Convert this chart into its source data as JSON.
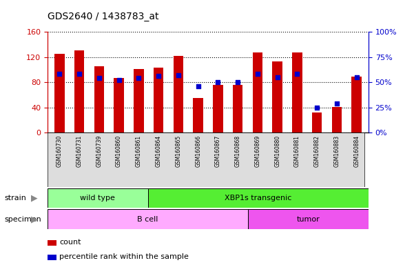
{
  "title": "GDS2640 / 1438783_at",
  "samples": [
    "GSM160730",
    "GSM160731",
    "GSM160739",
    "GSM160860",
    "GSM160861",
    "GSM160864",
    "GSM160865",
    "GSM160866",
    "GSM160867",
    "GSM160868",
    "GSM160869",
    "GSM160880",
    "GSM160881",
    "GSM160882",
    "GSM160883",
    "GSM160884"
  ],
  "counts": [
    125,
    130,
    105,
    87,
    101,
    103,
    122,
    55,
    76,
    76,
    127,
    113,
    127,
    32,
    41,
    89
  ],
  "percentiles": [
    58,
    58,
    54,
    52,
    54,
    56,
    57,
    46,
    50,
    50,
    58,
    55,
    58,
    25,
    29,
    55
  ],
  "bar_color": "#cc0000",
  "dot_color": "#0000cc",
  "ylim_left": [
    0,
    160
  ],
  "ylim_right": [
    0,
    100
  ],
  "yticks_left": [
    0,
    40,
    80,
    120,
    160
  ],
  "yticks_right": [
    0,
    25,
    50,
    75,
    100
  ],
  "yticklabels_right": [
    "0%",
    "25%",
    "50%",
    "75%",
    "100%"
  ],
  "strain_groups": [
    {
      "label": "wild type",
      "start": 0,
      "end": 5,
      "color": "#99ff99"
    },
    {
      "label": "XBP1s transgenic",
      "start": 5,
      "end": 16,
      "color": "#55ee33"
    }
  ],
  "specimen_groups": [
    {
      "label": "B cell",
      "start": 0,
      "end": 10,
      "color": "#ffaaff"
    },
    {
      "label": "tumor",
      "start": 10,
      "end": 16,
      "color": "#ee55ee"
    }
  ],
  "legend_items": [
    {
      "label": "count",
      "color": "#cc0000"
    },
    {
      "label": "percentile rank within the sample",
      "color": "#0000cc"
    }
  ],
  "xlabel_color": "#cc0000",
  "ylabel_right_color": "#0000cc",
  "background_color": "#ffffff",
  "plot_bg_color": "#ffffff",
  "bar_width": 0.5
}
